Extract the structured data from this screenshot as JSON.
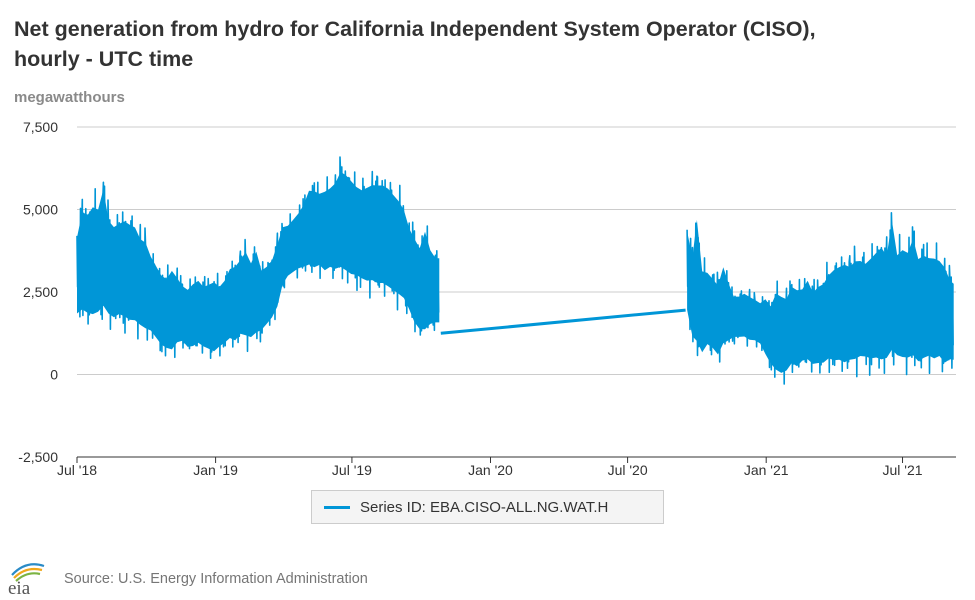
{
  "title": "Net generation from hydro for California Independent System Operator (CISO), hourly - UTC time",
  "units": "megawatthours",
  "legend_label": "Series ID: EBA.CISO-ALL.NG.WAT.H",
  "source": "Source: U.S. Energy Information Administration",
  "logo_text": "eia",
  "colors": {
    "series": "#0096d7",
    "grid": "#cccccc",
    "axis": "#333333",
    "text": "#333333"
  },
  "chart_data": {
    "type": "line",
    "title": "Net generation from hydro for California Independent System Operator (CISO), hourly - UTC time",
    "ylabel": "megawatthours",
    "ylim": [
      -2500,
      7500
    ],
    "yticks": [
      -2500,
      0,
      2500,
      5000,
      7500
    ],
    "ytick_labels": [
      "-2,500",
      "0",
      "2,500",
      "5,000",
      "7,500"
    ],
    "xlim": [
      "2018-07-01",
      "2021-09-10"
    ],
    "xticks": [
      "2018-07-01",
      "2019-01-01",
      "2019-07-01",
      "2020-01-01",
      "2020-07-01",
      "2021-01-01",
      "2021-07-01"
    ],
    "xtick_labels": [
      "Jul '18",
      "Jan '19",
      "Jul '19",
      "Jan '20",
      "Jul '20",
      "Jan '21",
      "Jul '21"
    ],
    "grid": true,
    "legend_position": "bottom",
    "series": [
      {
        "name": "Series ID: EBA.CISO-ALL.NG.WAT.H",
        "color": "#0096d7",
        "note": "hourly values; weekly low/high envelope listed",
        "segments": [
          {
            "points": [
              [
                "2018-07-01",
                1400,
                4600
              ],
              [
                "2018-07-08",
                1400,
                5500
              ],
              [
                "2018-07-15",
                1300,
                5400
              ],
              [
                "2018-07-22",
                1200,
                5700
              ],
              [
                "2018-07-29",
                1300,
                5600
              ],
              [
                "2018-08-05",
                1400,
                6300
              ],
              [
                "2018-08-12",
                1300,
                5200
              ],
              [
                "2018-08-19",
                1200,
                5000
              ],
              [
                "2018-08-26",
                1300,
                5100
              ],
              [
                "2018-09-02",
                1200,
                5200
              ],
              [
                "2018-09-09",
                1100,
                5100
              ],
              [
                "2018-09-16",
                1100,
                5000
              ],
              [
                "2018-09-23",
                1000,
                4600
              ],
              [
                "2018-09-30",
                900,
                4500
              ],
              [
                "2018-10-07",
                900,
                4000
              ],
              [
                "2018-10-14",
                700,
                3700
              ],
              [
                "2018-10-21",
                500,
                3400
              ],
              [
                "2018-10-28",
                400,
                3300
              ],
              [
                "2018-11-04",
                300,
                3600
              ],
              [
                "2018-11-11",
                600,
                3300
              ],
              [
                "2018-11-18",
                700,
                3000
              ],
              [
                "2018-11-25",
                500,
                2900
              ],
              [
                "2018-12-02",
                500,
                3100
              ],
              [
                "2018-12-09",
                600,
                3200
              ],
              [
                "2018-12-16",
                500,
                3000
              ],
              [
                "2018-12-23",
                400,
                3100
              ],
              [
                "2018-12-30",
                300,
                3200
              ],
              [
                "2019-01-06",
                500,
                3000
              ],
              [
                "2019-01-13",
                600,
                3200
              ],
              [
                "2019-01-20",
                700,
                3600
              ],
              [
                "2019-01-27",
                600,
                3700
              ],
              [
                "2019-02-03",
                800,
                3900
              ],
              [
                "2019-02-10",
                700,
                4200
              ],
              [
                "2019-02-17",
                700,
                3800
              ],
              [
                "2019-02-24",
                800,
                4200
              ],
              [
                "2019-03-03",
                1000,
                3500
              ],
              [
                "2019-03-10",
                1200,
                3600
              ],
              [
                "2019-03-17",
                1400,
                3800
              ],
              [
                "2019-03-24",
                1700,
                4300
              ],
              [
                "2019-03-31",
                2400,
                4800
              ],
              [
                "2019-04-07",
                2700,
                4800
              ],
              [
                "2019-04-14",
                2800,
                5000
              ],
              [
                "2019-04-21",
                2900,
                5200
              ],
              [
                "2019-04-28",
                2900,
                5500
              ],
              [
                "2019-05-05",
                2900,
                6000
              ],
              [
                "2019-05-12",
                2800,
                6000
              ],
              [
                "2019-05-19",
                2900,
                5900
              ],
              [
                "2019-05-26",
                2700,
                6000
              ],
              [
                "2019-06-02",
                2800,
                6100
              ],
              [
                "2019-06-09",
                2700,
                6300
              ],
              [
                "2019-06-16",
                2700,
                6700
              ],
              [
                "2019-06-23",
                2600,
                6600
              ],
              [
                "2019-06-30",
                2500,
                6400
              ],
              [
                "2019-07-07",
                2500,
                6200
              ],
              [
                "2019-07-14",
                2400,
                6100
              ],
              [
                "2019-07-21",
                2300,
                6200
              ],
              [
                "2019-07-28",
                2300,
                6300
              ],
              [
                "2019-08-04",
                2200,
                6300
              ],
              [
                "2019-08-11",
                2200,
                6300
              ],
              [
                "2019-08-18",
                2100,
                6200
              ],
              [
                "2019-08-25",
                2000,
                6000
              ],
              [
                "2019-09-01",
                1900,
                5800
              ],
              [
                "2019-09-08",
                1800,
                5500
              ],
              [
                "2019-09-15",
                1500,
                4900
              ],
              [
                "2019-09-22",
                1100,
                4600
              ],
              [
                "2019-09-29",
                900,
                4300
              ],
              [
                "2019-10-06",
                800,
                4900
              ],
              [
                "2019-10-13",
                1100,
                4200
              ],
              [
                "2019-10-20",
                1200,
                3900
              ],
              [
                "2019-10-25",
                1200,
                3900
              ]
            ]
          },
          {
            "points": [
              [
                "2019-10-27",
                1250,
                1250
              ],
              [
                "2020-09-16",
                1950,
                1950
              ]
            ]
          },
          {
            "points": [
              [
                "2020-09-18",
                1500,
                4800
              ],
              [
                "2020-09-25",
                700,
                4000
              ],
              [
                "2020-10-01",
                300,
                5400
              ],
              [
                "2020-10-08",
                200,
                3600
              ],
              [
                "2020-10-15",
                500,
                3500
              ],
              [
                "2020-10-22",
                400,
                3300
              ],
              [
                "2020-10-29",
                200,
                3100
              ],
              [
                "2020-11-05",
                500,
                3700
              ],
              [
                "2020-11-12",
                700,
                3100
              ],
              [
                "2020-11-19",
                900,
                2600
              ],
              [
                "2020-11-26",
                900,
                2600
              ],
              [
                "2020-12-03",
                900,
                2700
              ],
              [
                "2020-12-10",
                800,
                2600
              ],
              [
                "2020-12-17",
                800,
                2500
              ],
              [
                "2020-12-24",
                700,
                2400
              ],
              [
                "2020-12-31",
                300,
                2600
              ],
              [
                "2021-01-07",
                0,
                2400
              ],
              [
                "2021-01-14",
                -300,
                2900
              ],
              [
                "2021-01-21",
                -400,
                2800
              ],
              [
                "2021-01-28",
                -300,
                2700
              ],
              [
                "2021-02-04",
                -100,
                3100
              ],
              [
                "2021-02-11",
                -200,
                3000
              ],
              [
                "2021-02-18",
                0,
                3000
              ],
              [
                "2021-02-25",
                0,
                3300
              ],
              [
                "2021-03-04",
                -100,
                2900
              ],
              [
                "2021-03-11",
                -100,
                3100
              ],
              [
                "2021-03-18",
                -100,
                3200
              ],
              [
                "2021-03-25",
                0,
                3500
              ],
              [
                "2021-04-01",
                -100,
                3700
              ],
              [
                "2021-04-08",
                -100,
                3800
              ],
              [
                "2021-04-15",
                -200,
                3900
              ],
              [
                "2021-04-22",
                -100,
                3800
              ],
              [
                "2021-04-29",
                -100,
                4000
              ],
              [
                "2021-05-06",
                0,
                4000
              ],
              [
                "2021-05-13",
                0,
                3900
              ],
              [
                "2021-05-20",
                -100,
                4100
              ],
              [
                "2021-05-27",
                -100,
                4300
              ],
              [
                "2021-06-03",
                -200,
                4500
              ],
              [
                "2021-06-10",
                -100,
                4200
              ],
              [
                "2021-06-17",
                0,
                5400
              ],
              [
                "2021-06-24",
                0,
                4200
              ],
              [
                "2021-07-01",
                -100,
                4400
              ],
              [
                "2021-07-08",
                -100,
                4300
              ],
              [
                "2021-07-15",
                -100,
                4800
              ],
              [
                "2021-07-22",
                -200,
                4100
              ],
              [
                "2021-07-29",
                -100,
                4200
              ],
              [
                "2021-08-05",
                0,
                4100
              ],
              [
                "2021-08-12",
                -100,
                4100
              ],
              [
                "2021-08-19",
                0,
                4000
              ],
              [
                "2021-08-26",
                -200,
                3800
              ],
              [
                "2021-09-02",
                0,
                3300
              ],
              [
                "2021-09-07",
                0,
                3200
              ]
            ]
          }
        ]
      }
    ]
  }
}
